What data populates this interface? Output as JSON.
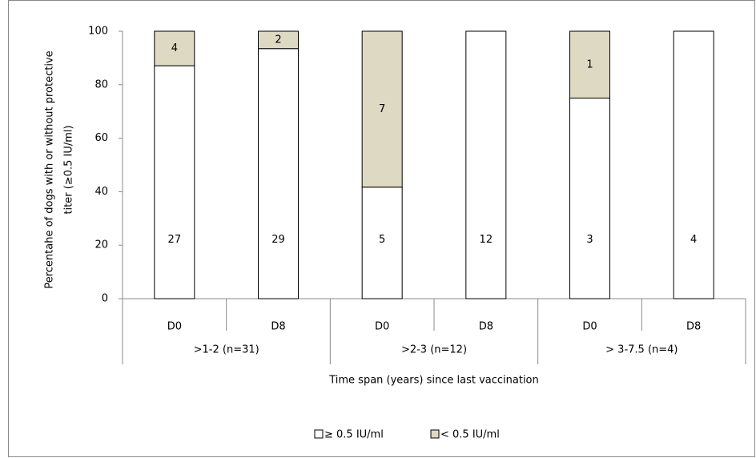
{
  "chart_data": {
    "type": "stacked_bar",
    "y_axis_label": [
      "Percentahe of dogs with or without protective",
      "titer (≥0.5 IU/ml)"
    ],
    "x_axis_label": "Time span (years) since  last vaccination",
    "categories": [
      "D0",
      "D8",
      "D0",
      "D8",
      "D0",
      "D8"
    ],
    "groups": [
      ">1-2 (n=31)",
      ">2-3 (n=12)",
      "> 3-7.5 (n=4)"
    ],
    "series": [
      {
        "name": "≥ 0.5 IU/ml",
        "color": "#ffffff",
        "values": [
          87.1,
          93.5,
          41.7,
          100,
          75,
          100
        ],
        "counts": [
          27,
          29,
          5,
          12,
          3,
          4
        ]
      },
      {
        "name": "< 0.5 IU/ml",
        "color": "#ddd9c3",
        "values": [
          12.9,
          6.5,
          58.3,
          0,
          25,
          0
        ],
        "counts": [
          4,
          2,
          7,
          null,
          1,
          null
        ]
      }
    ],
    "ylim": [
      0,
      100
    ],
    "yticks": [
      0,
      20,
      40,
      60,
      80,
      100
    ],
    "grid": false,
    "legend": "bottom"
  }
}
